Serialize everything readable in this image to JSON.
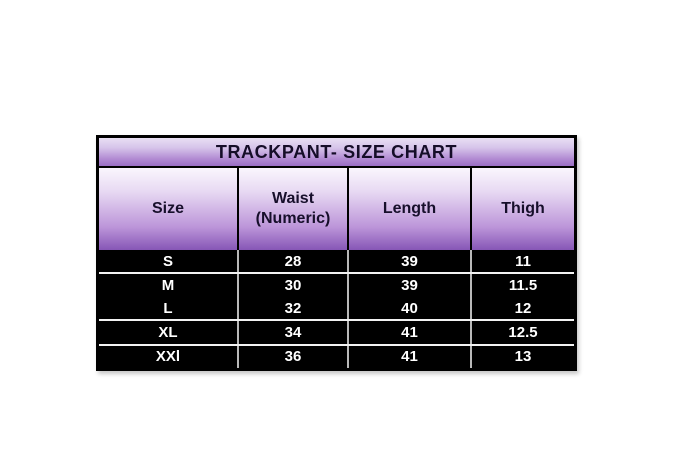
{
  "chart": {
    "title": "TRACKPANT- SIZE CHART",
    "headers": {
      "size": "Size",
      "waist": "Waist\n(Numeric)",
      "length": "Length",
      "thigh": "Thigh"
    },
    "rows": [
      {
        "size": "S",
        "waist": "28",
        "length": "39",
        "thigh": "11"
      },
      {
        "size": "M",
        "waist": "30",
        "length": "39",
        "thigh": "11.5"
      },
      {
        "size": "L",
        "waist": "32",
        "length": "40",
        "thigh": "12"
      },
      {
        "size": "XL",
        "waist": "34",
        "length": "41",
        "thigh": "12.5"
      },
      {
        "size": "XXl",
        "waist": "36",
        "length": "41",
        "thigh": "13"
      }
    ],
    "colors": {
      "title_gradient_top": "#e9dff4",
      "title_gradient_bottom": "#9a6ec4",
      "header_gradient_top": "#faf6fd",
      "header_gradient_bottom": "#8656b6",
      "data_row_background": "#000000",
      "data_text": "#ffffff",
      "header_text": "#170f2b",
      "border": "#000000",
      "row_separator": "#f2f2f2",
      "column_separator": "#b9b9b9",
      "page_background": "#ffffff"
    }
  },
  "chart_data": {
    "type": "table",
    "title": "TRACKPANT- SIZE CHART",
    "columns": [
      "Size",
      "Waist (Numeric)",
      "Length",
      "Thigh"
    ],
    "rows": [
      [
        "S",
        "28",
        "39",
        "11"
      ],
      [
        "M",
        "30",
        "39",
        "11.5"
      ],
      [
        "L",
        "32",
        "40",
        "12"
      ],
      [
        "XL",
        "34",
        "41",
        "12.5"
      ],
      [
        "XXl",
        "36",
        "41",
        "13"
      ]
    ]
  }
}
